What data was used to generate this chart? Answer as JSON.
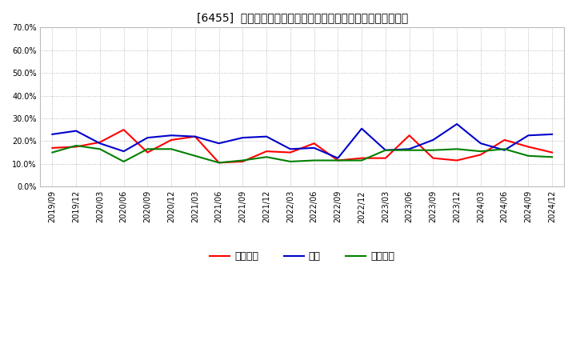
{
  "title": "[6455]  売上債権、在庫、買入債務の総資産に対する比率の推移",
  "x_labels": [
    "2019/09",
    "2019/12",
    "2020/03",
    "2020/06",
    "2020/09",
    "2020/12",
    "2021/03",
    "2021/06",
    "2021/09",
    "2021/12",
    "2022/03",
    "2022/06",
    "2022/09",
    "2022/12",
    "2023/03",
    "2023/06",
    "2023/09",
    "2023/12",
    "2024/03",
    "2024/06",
    "2024/09",
    "2024/12"
  ],
  "sales_receivables": [
    17.0,
    17.5,
    19.5,
    25.0,
    15.0,
    20.5,
    22.0,
    10.5,
    11.0,
    15.5,
    15.0,
    19.0,
    11.5,
    12.5,
    12.5,
    22.5,
    12.5,
    11.5,
    14.0,
    20.5,
    17.5,
    15.0
  ],
  "inventory": [
    23.0,
    24.5,
    19.0,
    15.5,
    21.5,
    22.5,
    22.0,
    19.0,
    21.5,
    22.0,
    16.5,
    17.0,
    12.5,
    25.5,
    16.0,
    16.5,
    20.5,
    27.5,
    19.0,
    16.0,
    22.5,
    23.0
  ],
  "payables": [
    15.0,
    18.0,
    16.5,
    11.0,
    16.5,
    16.5,
    13.5,
    10.5,
    11.5,
    13.0,
    11.0,
    11.5,
    11.5,
    11.5,
    16.0,
    16.0,
    16.0,
    16.5,
    15.5,
    16.5,
    13.5,
    13.0
  ],
  "sales_receivables_color": "#ff0000",
  "inventory_color": "#0000cc",
  "payables_color": "#008000",
  "background_color": "#ffffff",
  "grid_color": "#aaaaaa",
  "ylim": [
    0.0,
    70.0
  ],
  "yticks": [
    0.0,
    10.0,
    20.0,
    30.0,
    40.0,
    50.0,
    60.0,
    70.0
  ],
  "legend_labels": [
    "売上債権",
    "在庫",
    "買入債務"
  ],
  "line_width": 1.5,
  "title_fontsize": 10,
  "tick_fontsize": 7,
  "legend_fontsize": 9
}
